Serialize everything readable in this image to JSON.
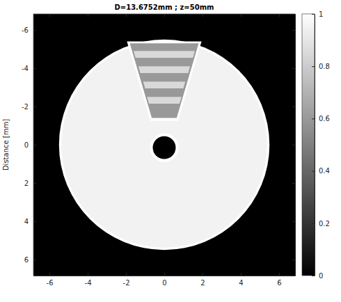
{
  "chart_data": {
    "type": "image",
    "title": "D=13.6752mm ; z=50mm",
    "ylabel": "Distance [mm]",
    "xlim": [
      -6.8376,
      6.8376
    ],
    "ylim": [
      -6.8376,
      6.8376
    ],
    "xticks": [
      -6,
      -4,
      -2,
      0,
      2,
      4,
      6
    ],
    "yticks": [
      -6,
      -4,
      -2,
      0,
      2,
      4,
      6
    ],
    "background": 0,
    "shapes": [
      {
        "shape": "disk",
        "cx": 0,
        "cy": 0,
        "r": 5.5,
        "value": 1
      },
      {
        "shape": "disk",
        "cx": 0,
        "cy": 0,
        "r": 5.38,
        "value": 0.95
      },
      {
        "shape": "polygon",
        "points": [
          [
            -1.95,
            -5.4
          ],
          [
            1.95,
            -5.4
          ],
          [
            0.72,
            -1.25
          ],
          [
            -0.72,
            -1.25
          ]
        ],
        "value": 1
      },
      {
        "shape": "polygon",
        "points": [
          [
            -1.8,
            -5.3
          ],
          [
            1.8,
            -5.3
          ],
          [
            0.65,
            -1.4
          ],
          [
            -0.65,
            -1.4
          ]
        ],
        "value": 0.6
      },
      {
        "shape": "polygon",
        "points": [
          [
            -1.6,
            -4.9
          ],
          [
            1.6,
            -4.9
          ],
          [
            1.5,
            -4.55
          ],
          [
            -1.5,
            -4.55
          ]
        ],
        "value": 0.85
      },
      {
        "shape": "polygon",
        "points": [
          [
            -1.35,
            -4.1
          ],
          [
            1.35,
            -4.1
          ],
          [
            1.25,
            -3.75
          ],
          [
            -1.25,
            -3.75
          ]
        ],
        "value": 0.85
      },
      {
        "shape": "polygon",
        "points": [
          [
            -1.1,
            -3.3
          ],
          [
            1.1,
            -3.3
          ],
          [
            1.0,
            -2.95
          ],
          [
            -1.0,
            -2.95
          ]
        ],
        "value": 0.85
      },
      {
        "shape": "polygon",
        "points": [
          [
            -0.9,
            -2.5
          ],
          [
            0.9,
            -2.5
          ],
          [
            0.8,
            -2.15
          ],
          [
            -0.8,
            -2.15
          ]
        ],
        "value": 0.85
      },
      {
        "shape": "disk",
        "cx": 0,
        "cy": 0.15,
        "r": 0.75,
        "value": 1
      },
      {
        "shape": "disk",
        "cx": 0,
        "cy": 0.15,
        "r": 0.6,
        "value": 0
      }
    ],
    "clim": [
      0,
      1
    ],
    "cticks": [
      0,
      0.2,
      0.4,
      0.6,
      0.8,
      1
    ]
  }
}
